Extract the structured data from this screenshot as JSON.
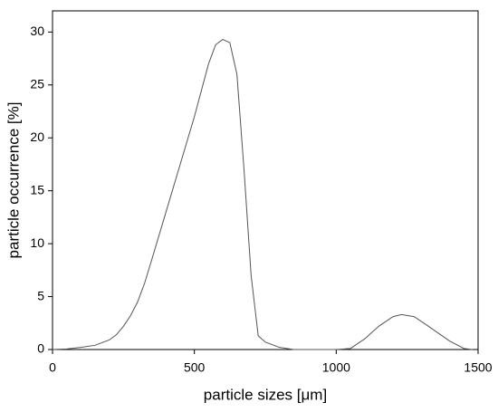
{
  "chart_data": {
    "type": "line",
    "x_label": "particle sizes [μm]",
    "y_label": "particle occurrence [%]",
    "x": [
      0,
      50,
      100,
      150,
      200,
      225,
      250,
      275,
      300,
      325,
      350,
      400,
      450,
      500,
      525,
      550,
      575,
      600,
      625,
      650,
      675,
      700,
      725,
      750,
      800,
      850,
      1000,
      1050,
      1100,
      1150,
      1200,
      1230,
      1275,
      1325,
      1400,
      1450,
      1480
    ],
    "series": [
      {
        "color": "#555555",
        "values": [
          0,
          0.05,
          0.2,
          0.4,
          0.9,
          1.4,
          2.2,
          3.2,
          4.5,
          6.3,
          8.5,
          13,
          17.5,
          22,
          24.5,
          27,
          28.8,
          29.3,
          29,
          26,
          17,
          7,
          1.3,
          0.7,
          0.2,
          0,
          0,
          0.1,
          1,
          2.2,
          3.1,
          3.3,
          3.1,
          2.2,
          0.8,
          0.1,
          0
        ]
      }
    ],
    "xlim": [
      0,
      1500
    ],
    "xticks": [
      0,
      500,
      1000,
      1500
    ],
    "ylim": [
      0,
      32
    ],
    "yticks": [
      0,
      5,
      10,
      15,
      20,
      25,
      30
    ],
    "grid": false
  }
}
